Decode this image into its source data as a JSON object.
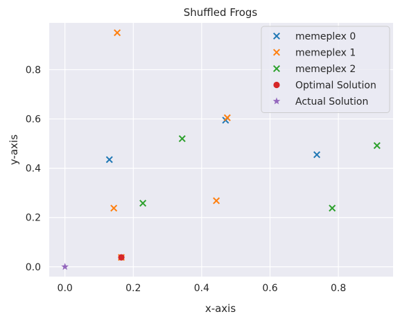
{
  "chart_data": {
    "type": "scatter",
    "title": "Shuffled Frogs",
    "xlabel": "x-axis",
    "ylabel": "y-axis",
    "xlim": [
      -0.046,
      0.96
    ],
    "ylim": [
      -0.04,
      0.99
    ],
    "xticks": [
      0.0,
      0.2,
      0.4,
      0.6,
      0.8
    ],
    "xtick_labels": [
      "0.0",
      "0.2",
      "0.4",
      "0.6",
      "0.8"
    ],
    "yticks": [
      0.0,
      0.2,
      0.4,
      0.6,
      0.8
    ],
    "ytick_labels": [
      "0.0",
      "0.2",
      "0.4",
      "0.6",
      "0.8"
    ],
    "grid": true,
    "legend_position": "top-right",
    "series": [
      {
        "name": "memeplex 0",
        "marker": "x",
        "color": "#1f77b4",
        "points": [
          [
            0.13,
            0.435
          ],
          [
            0.47,
            0.595
          ],
          [
            0.737,
            0.455
          ]
        ]
      },
      {
        "name": "memeplex 1",
        "marker": "x",
        "color": "#ff7f0e",
        "points": [
          [
            0.153,
            0.95
          ],
          [
            0.475,
            0.605
          ],
          [
            0.143,
            0.238
          ],
          [
            0.443,
            0.268
          ],
          [
            0.165,
            0.038
          ]
        ]
      },
      {
        "name": "memeplex 2",
        "marker": "x",
        "color": "#2ca02c",
        "points": [
          [
            0.343,
            0.52
          ],
          [
            0.228,
            0.258
          ],
          [
            0.913,
            0.492
          ],
          [
            0.782,
            0.238
          ]
        ]
      },
      {
        "name": "Optimal Solution",
        "marker": "o",
        "color": "#d62728",
        "points": [
          [
            0.165,
            0.038
          ]
        ]
      },
      {
        "name": "Actual Solution",
        "marker": "*",
        "color": "#9467bd",
        "points": [
          [
            0.0,
            0.0
          ]
        ]
      }
    ]
  }
}
